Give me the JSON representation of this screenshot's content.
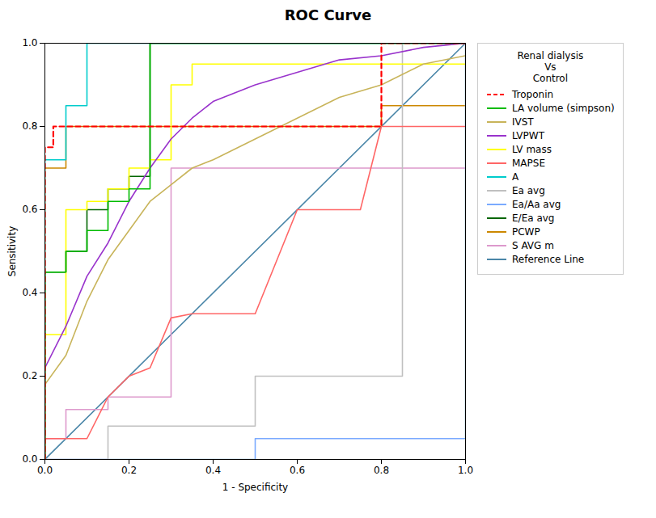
{
  "chart_data": {
    "type": "line",
    "title": "ROC Curve",
    "x_label": "1 - Specificity",
    "y_label": "Sensitivity",
    "legend_title": "Renal dialysis\n    Vs\n  Control",
    "legend": "right",
    "grid": false,
    "xlim": [
      0.0,
      1.0
    ],
    "ylim": [
      0.0,
      1.0
    ],
    "xticks": [
      {
        "value": 0.0,
        "label": "0.0"
      },
      {
        "value": 0.2,
        "label": "0.2"
      },
      {
        "value": 0.4,
        "label": "0.4"
      },
      {
        "value": 0.6,
        "label": "0.6"
      },
      {
        "value": 0.8,
        "label": "0.8"
      },
      {
        "value": 1.0,
        "label": "1.0"
      }
    ],
    "yticks": [
      {
        "value": 0.0,
        "label": "0.0"
      },
      {
        "value": 0.2,
        "label": "0.2"
      },
      {
        "value": 0.4,
        "label": "0.4"
      },
      {
        "value": 0.6,
        "label": "0.6"
      },
      {
        "value": 0.8,
        "label": "0.8"
      },
      {
        "value": 1.0,
        "label": "1.0"
      }
    ],
    "series": [
      {
        "name": "Troponin",
        "color": "#FF0000",
        "line_style": "dashed",
        "x": [
          0.0,
          0.0,
          0.02,
          0.02,
          0.08,
          0.08,
          0.75,
          0.75,
          0.8,
          0.8,
          1.0,
          1.0
        ],
        "values": [
          0.0,
          0.75,
          0.75,
          0.8,
          0.8,
          0.8,
          0.8,
          0.8,
          0.8,
          1.0,
          1.0,
          1.0
        ]
      },
      {
        "name": "LA volume (simpson)",
        "color": "#00BB00",
        "line_style": "solid",
        "x": [
          0.0,
          0.0,
          0.05,
          0.05,
          0.1,
          0.1,
          0.15,
          0.15,
          0.2,
          0.2,
          0.25,
          0.25,
          1.0
        ],
        "values": [
          0.0,
          0.45,
          0.45,
          0.5,
          0.5,
          0.55,
          0.55,
          0.62,
          0.62,
          0.65,
          0.65,
          1.0,
          1.0
        ]
      },
      {
        "name": "IVST",
        "color": "#C8B45A",
        "line_style": "solid",
        "x": [
          0.0,
          0.0,
          0.05,
          0.1,
          0.15,
          0.2,
          0.25,
          0.3,
          0.35,
          0.4,
          0.5,
          0.6,
          0.7,
          0.8,
          0.9,
          1.0
        ],
        "values": [
          0.0,
          0.18,
          0.25,
          0.38,
          0.48,
          0.55,
          0.62,
          0.66,
          0.7,
          0.72,
          0.77,
          0.82,
          0.87,
          0.9,
          0.95,
          0.97
        ]
      },
      {
        "name": "LVPWT",
        "color": "#9933CC",
        "line_style": "solid",
        "x": [
          0.0,
          0.0,
          0.05,
          0.1,
          0.15,
          0.2,
          0.25,
          0.3,
          0.35,
          0.4,
          0.5,
          0.6,
          0.7,
          0.8,
          0.9,
          1.0
        ],
        "values": [
          0.0,
          0.22,
          0.32,
          0.44,
          0.52,
          0.62,
          0.7,
          0.77,
          0.82,
          0.86,
          0.9,
          0.93,
          0.96,
          0.97,
          0.99,
          1.0
        ]
      },
      {
        "name": "LV mass",
        "color": "#FFFF00",
        "line_style": "solid",
        "x": [
          0.0,
          0.0,
          0.05,
          0.05,
          0.1,
          0.1,
          0.15,
          0.15,
          0.2,
          0.2,
          0.25,
          0.25,
          0.3,
          0.3,
          0.35,
          0.35,
          1.0
        ],
        "values": [
          0.0,
          0.3,
          0.3,
          0.6,
          0.6,
          0.62,
          0.62,
          0.65,
          0.65,
          0.7,
          0.7,
          0.72,
          0.72,
          0.9,
          0.9,
          0.95,
          0.95
        ]
      },
      {
        "name": "MAPSE",
        "color": "#FF6666",
        "line_style": "solid",
        "x": [
          0.0,
          0.05,
          0.1,
          0.15,
          0.2,
          0.25,
          0.3,
          0.35,
          0.4,
          0.5,
          0.6,
          0.65,
          0.7,
          0.75,
          0.8,
          0.85,
          0.9,
          0.95,
          1.0
        ],
        "values": [
          0.05,
          0.05,
          0.05,
          0.15,
          0.2,
          0.22,
          0.34,
          0.35,
          0.35,
          0.35,
          0.6,
          0.6,
          0.6,
          0.6,
          0.8,
          0.8,
          0.8,
          0.8,
          0.8
        ]
      },
      {
        "name": "A",
        "color": "#00CCCC",
        "line_style": "solid",
        "x": [
          0.0,
          0.0,
          0.05,
          0.05,
          0.1,
          0.1,
          0.5,
          0.5,
          0.75,
          0.75,
          1.0
        ],
        "values": [
          0.0,
          0.72,
          0.72,
          0.85,
          0.85,
          1.0,
          1.0,
          1.0,
          1.0,
          1.0,
          1.0
        ]
      },
      {
        "name": "Ea avg",
        "color": "#C0C0C0",
        "line_style": "solid",
        "x": [
          0.0,
          0.0,
          0.15,
          0.15,
          0.5,
          0.5,
          0.85,
          0.85,
          1.0,
          1.0
        ],
        "values": [
          0.0,
          0.0,
          0.0,
          0.08,
          0.08,
          0.2,
          0.2,
          1.0,
          1.0,
          1.0
        ]
      },
      {
        "name": "Ea/Aa avg",
        "color": "#7AAAFF",
        "line_style": "solid",
        "x": [
          0.0,
          0.0,
          0.5,
          0.5,
          1.0,
          1.0
        ],
        "values": [
          0.0,
          0.0,
          0.0,
          0.05,
          0.05,
          1.0
        ]
      },
      {
        "name": "E/Ea avg",
        "color": "#006600",
        "line_style": "solid",
        "x": [
          0.0,
          0.0,
          0.05,
          0.05,
          0.1,
          0.1,
          0.15,
          0.15,
          0.2,
          0.2,
          0.25,
          0.25,
          1.0
        ],
        "values": [
          0.0,
          0.45,
          0.45,
          0.5,
          0.5,
          0.6,
          0.6,
          0.65,
          0.65,
          0.68,
          0.68,
          1.0,
          1.0
        ]
      },
      {
        "name": "PCWP",
        "color": "#CC8800",
        "line_style": "solid",
        "x": [
          0.0,
          0.0,
          0.05,
          0.05,
          0.8,
          0.8,
          0.85,
          0.85,
          1.0
        ],
        "values": [
          0.0,
          0.7,
          0.7,
          0.8,
          0.8,
          0.85,
          0.85,
          0.85,
          0.85
        ]
      },
      {
        "name": "S AVG m",
        "color": "#DD99CC",
        "line_style": "solid",
        "x": [
          0.0,
          0.0,
          0.05,
          0.05,
          0.15,
          0.15,
          0.3,
          0.3,
          1.0
        ],
        "values": [
          0.0,
          0.05,
          0.05,
          0.12,
          0.12,
          0.15,
          0.15,
          0.7,
          0.7
        ]
      },
      {
        "name": "Reference Line",
        "color": "#4A86A8",
        "line_style": "solid",
        "x": [
          0.0,
          1.0
        ],
        "values": [
          0.0,
          1.0
        ]
      }
    ]
  }
}
